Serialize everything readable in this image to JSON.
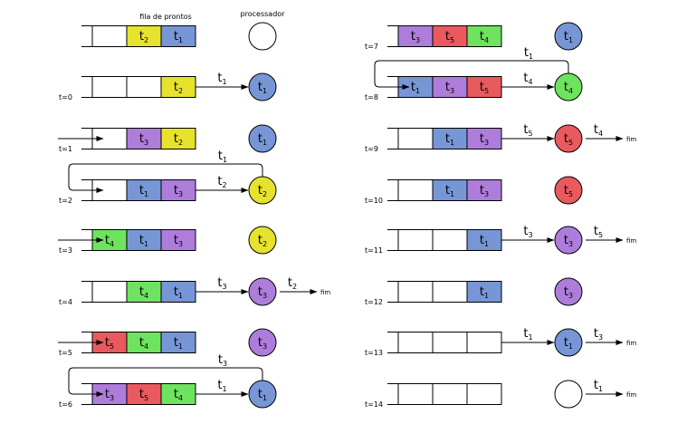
{
  "headers": {
    "queue": "fila de prontos",
    "processor": "processador"
  },
  "fim_label": "fim",
  "colors": {
    "t1": "#7796d6",
    "t2": "#e6e22e",
    "t3": "#ae7ddb",
    "t4": "#6ee35f",
    "t5": "#e85a5e",
    "empty": "#ffffff"
  },
  "states": [
    {
      "label": "",
      "queue": [
        "",
        "t2",
        "t1"
      ],
      "cpu": "",
      "enter": null,
      "loop": null,
      "dispatch": null,
      "exit": null
    },
    {
      "label": "t=0",
      "queue": [
        "",
        "",
        "t2"
      ],
      "cpu": "t1",
      "enter": null,
      "loop": null,
      "dispatch": "t1",
      "exit": null
    },
    {
      "label": "t=1",
      "queue": [
        "",
        "t3",
        "t2"
      ],
      "cpu": "t1",
      "enter": "t3",
      "loop": null,
      "dispatch": null,
      "exit": null
    },
    {
      "label": "t=2",
      "queue": [
        "",
        "t1",
        "t3"
      ],
      "cpu": "t2",
      "enter": null,
      "loop": "t1",
      "dispatch": "t2",
      "exit": null
    },
    {
      "label": "t=3",
      "queue": [
        "t4",
        "t1",
        "t3"
      ],
      "cpu": "t2",
      "enter": "t4",
      "loop": null,
      "dispatch": null,
      "exit": null
    },
    {
      "label": "t=4",
      "queue": [
        "",
        "t4",
        "t1"
      ],
      "cpu": "t3",
      "enter": null,
      "loop": null,
      "dispatch": "t3",
      "exit": "t2"
    },
    {
      "label": "t=5",
      "queue": [
        "t5",
        "t4",
        "t1"
      ],
      "cpu": "t3",
      "enter": "t5",
      "loop": null,
      "dispatch": null,
      "exit": null
    },
    {
      "label": "t=6",
      "queue": [
        "t3",
        "t5",
        "t4"
      ],
      "cpu": "t1",
      "enter": null,
      "loop": "t3",
      "dispatch": "t1",
      "exit": null
    },
    {
      "label": "t=7",
      "queue": [
        "t3",
        "t5",
        "t4"
      ],
      "cpu": "t1",
      "enter": null,
      "loop": null,
      "dispatch": null,
      "exit": null
    },
    {
      "label": "t=8",
      "queue": [
        "t1",
        "t3",
        "t5"
      ],
      "cpu": "t4",
      "enter": null,
      "loop": "t1",
      "dispatch": "t4",
      "exit": null
    },
    {
      "label": "t=9",
      "queue": [
        "",
        "t1",
        "t3"
      ],
      "cpu": "t5",
      "enter": null,
      "loop": null,
      "dispatch": "t5",
      "exit": "t4"
    },
    {
      "label": "t=10",
      "queue": [
        "",
        "t1",
        "t3"
      ],
      "cpu": "t5",
      "enter": null,
      "loop": null,
      "dispatch": null,
      "exit": null
    },
    {
      "label": "t=11",
      "queue": [
        "",
        "",
        "t1"
      ],
      "cpu": "t3",
      "enter": null,
      "loop": null,
      "dispatch": "t3",
      "exit": "t5"
    },
    {
      "label": "t=12",
      "queue": [
        "",
        "",
        "t1"
      ],
      "cpu": "t3",
      "enter": null,
      "loop": null,
      "dispatch": null,
      "exit": null
    },
    {
      "label": "t=13",
      "queue": [
        "",
        "",
        ""
      ],
      "cpu": "t1",
      "enter": null,
      "loop": null,
      "dispatch": "t1",
      "exit": "t3"
    },
    {
      "label": "t=14",
      "queue": [
        "",
        "",
        ""
      ],
      "cpu": "",
      "enter": null,
      "loop": null,
      "dispatch": null,
      "exit": "t1"
    }
  ]
}
